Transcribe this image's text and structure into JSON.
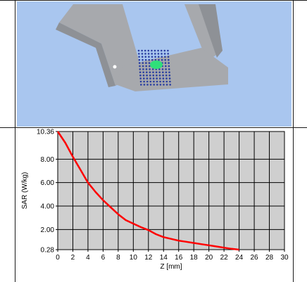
{
  "colors": {
    "scene_background": "#a9c6ef",
    "phantom": "#a7a9ad",
    "phantom_shadow": "#8e9196",
    "sar_grid_dots": "#2a3ea0",
    "sar_hotspot": "#2fe07a",
    "plot_background": "#cfcfcf",
    "grid": "#000000",
    "curve": "#ff0000"
  },
  "chart_data": {
    "type": "line",
    "title": "",
    "xlabel": "Z [mm]",
    "ylabel": "SAR (W/kg)",
    "xlim": [
      0,
      30
    ],
    "ylim": [
      0.28,
      10.36
    ],
    "x_ticks": [
      0,
      2,
      4,
      6,
      8,
      10,
      12,
      14,
      16,
      18,
      20,
      22,
      24,
      26,
      28,
      30
    ],
    "x_tick_labels": [
      "0",
      "2",
      "4",
      "6",
      "8",
      "10",
      "12",
      "14",
      "16",
      "18",
      "20",
      "22",
      "24",
      "26",
      "28",
      "30"
    ],
    "y_ticks": [
      0.28,
      2.0,
      4.0,
      6.0,
      8.0,
      10.36
    ],
    "y_tick_labels": [
      "0.28",
      "2.00",
      "4.00",
      "6.00",
      "8.00",
      "10.36"
    ],
    "grid": true,
    "series": [
      {
        "x": [
          0,
          1,
          2,
          3,
          4,
          5,
          6,
          7,
          8,
          9,
          10,
          11,
          12,
          13,
          14,
          15,
          16,
          17,
          18,
          19,
          20,
          21,
          22,
          23,
          24
        ],
        "values": [
          10.36,
          9.4,
          8.2,
          7.1,
          6.0,
          5.2,
          4.5,
          3.9,
          3.3,
          2.8,
          2.5,
          2.2,
          1.95,
          1.6,
          1.35,
          1.2,
          1.05,
          0.95,
          0.85,
          0.75,
          0.65,
          0.55,
          0.45,
          0.35,
          0.28
        ]
      }
    ]
  }
}
